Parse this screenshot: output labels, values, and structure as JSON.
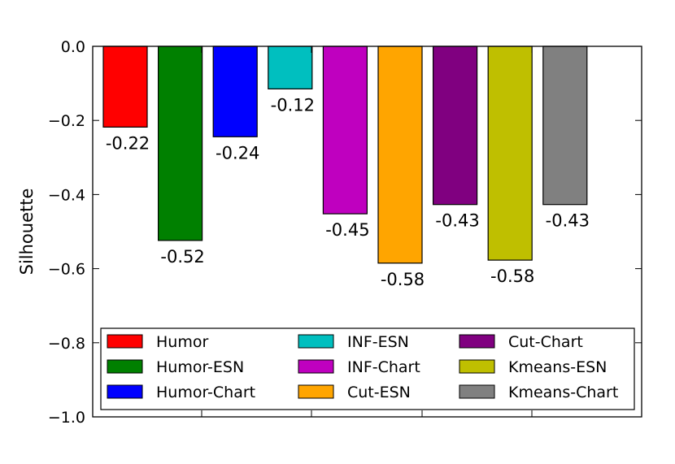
{
  "chart_data": {
    "type": "bar",
    "title": "",
    "xlabel": "",
    "ylabel": "Silhouette",
    "ylim": [
      -1.0,
      0.0
    ],
    "yticks": [
      0.0,
      -0.2,
      -0.4,
      -0.6,
      -0.8,
      -1.0
    ],
    "ytick_labels": [
      "0.0",
      "−0.2",
      "−0.4",
      "−0.6",
      "−0.8",
      "−1.0"
    ],
    "grid": false,
    "legend_position": "bottom",
    "categories": [
      "Humor",
      "Humor-ESN",
      "Humor-Chart",
      "INF-ESN",
      "INF-Chart",
      "Cut-ESN",
      "Cut-Chart",
      "Kmeans-ESN",
      "Kmeans-Chart"
    ],
    "values": [
      -0.218,
      -0.524,
      -0.244,
      -0.115,
      -0.452,
      -0.585,
      -0.427,
      -0.577,
      -0.427
    ],
    "labels": [
      "-0.22",
      "-0.52",
      "-0.24",
      "-0.12",
      "-0.45",
      "-0.58",
      "-0.43",
      "-0.58",
      "-0.43"
    ],
    "colors": [
      "#ff0000",
      "#008000",
      "#0000ff",
      "#00bfbf",
      "#bf00bf",
      "#ffa500",
      "#800080",
      "#bfbf00",
      "#808080"
    ]
  }
}
